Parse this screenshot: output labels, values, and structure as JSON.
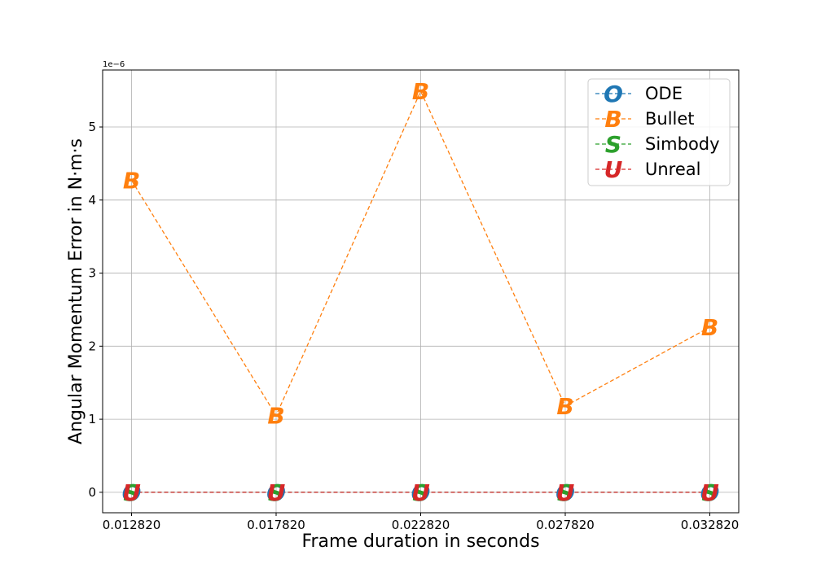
{
  "chart_data": {
    "type": "line",
    "xlabel": "Frame duration in seconds",
    "ylabel": "Angular Momentum Error in N·m·s",
    "y_exponent_label": "1e−6",
    "x": [
      "0.012820",
      "0.017820",
      "0.022820",
      "0.027820",
      "0.032820"
    ],
    "xlim": [
      0.01182,
      0.03382
    ],
    "ylim": [
      -0.28,
      5.78
    ],
    "y_scale_factor": 1e-06,
    "yticks": [
      0,
      1,
      2,
      3,
      4,
      5
    ],
    "ytick_labels": [
      "0",
      "1",
      "2",
      "3",
      "4",
      "5"
    ],
    "grid": true,
    "legend_position": "top-right",
    "series": [
      {
        "name": "ODE",
        "marker": "O",
        "color": "#1f77b4",
        "values": [
          0,
          0,
          0,
          0,
          0
        ]
      },
      {
        "name": "Bullet",
        "marker": "B",
        "color": "#ff7f0e",
        "values": [
          4.27,
          1.05,
          5.49,
          1.18,
          2.26
        ]
      },
      {
        "name": "Simbody",
        "marker": "S",
        "color": "#2ca02c",
        "values": [
          0,
          0,
          0,
          0,
          0
        ]
      },
      {
        "name": "Unreal",
        "marker": "U",
        "color": "#d62728",
        "values": [
          0,
          0,
          0,
          0,
          0
        ]
      }
    ]
  }
}
